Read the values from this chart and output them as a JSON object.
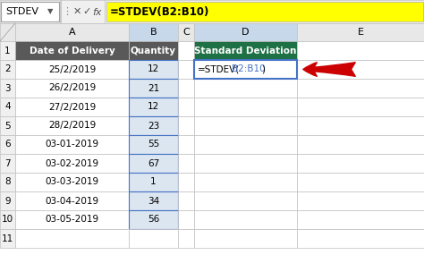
{
  "formula_bar_name": "STDEV",
  "formula_bar_formula": "=STDEV(B2:B10)",
  "col_labels": [
    "A",
    "B",
    "C",
    "D",
    "E"
  ],
  "header_row1_A": "Date of Delivery",
  "header_row1_B": "Quantity",
  "header_row1_D": "Standard Deviation",
  "data_rows": [
    [
      "25/2/2019",
      "12"
    ],
    [
      "26/2/2019",
      "21"
    ],
    [
      "27/2/2019",
      "12"
    ],
    [
      "28/2/2019",
      "23"
    ],
    [
      "03-01-2019",
      "55"
    ],
    [
      "03-02-2019",
      "67"
    ],
    [
      "03-03-2019",
      "1"
    ],
    [
      "03-04-2019",
      "34"
    ],
    [
      "03-05-2019",
      "56"
    ]
  ],
  "bg_color": "#ffffff",
  "header_dark_bg": "#595959",
  "header_dark_text": "#ffffff",
  "std_header_bg": "#1e7145",
  "std_header_text": "#ffffff",
  "col_header_bg": "#e8e8e8",
  "col_header_selected_bg": "#c8d8eb",
  "row_num_bg": "#f0f0f0",
  "selected_cell_bg": "#dce6f1",
  "selected_border": "#4472c4",
  "formula_bar_bg": "#ffff00",
  "grid_color": "#c0c0c0",
  "arrow_color": "#cc0000",
  "formula_cell_black": "=STDEV(",
  "formula_cell_blue": "B2:B10",
  "formula_cell_close": ")"
}
